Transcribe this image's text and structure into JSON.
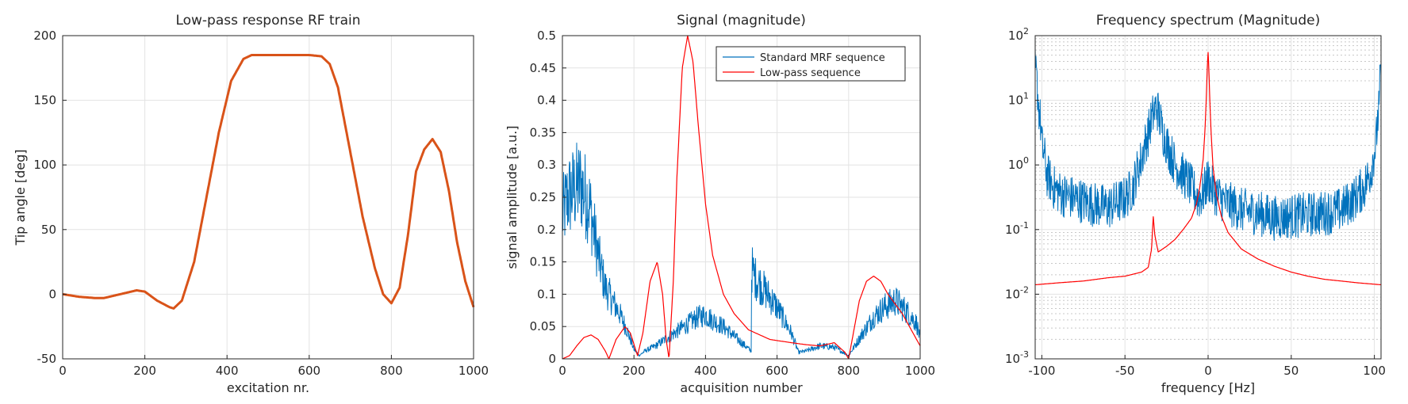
{
  "figure": {
    "background": "#ffffff"
  },
  "chart_data": [
    {
      "type": "line",
      "title": "Low-pass response RF train",
      "xlabel": "excitation nr.",
      "ylabel": "Tip angle [deg]",
      "xlim": [
        0,
        1000
      ],
      "ylim": [
        -50,
        200
      ],
      "xticks": [
        "0",
        "200",
        "400",
        "600",
        "800",
        "1000"
      ],
      "yticks": [
        "-50",
        "0",
        "50",
        "100",
        "150",
        "200"
      ],
      "grid": true,
      "legend": "none",
      "series": [
        {
          "color": "#d95319",
          "x": [
            0,
            40,
            80,
            100,
            140,
            180,
            200,
            230,
            260,
            270,
            290,
            320,
            350,
            380,
            410,
            440,
            460,
            480,
            500,
            600,
            630,
            650,
            670,
            700,
            730,
            760,
            780,
            800,
            820,
            840,
            860,
            880,
            900,
            920,
            940,
            960,
            980,
            1000
          ],
          "y": [
            0,
            -2,
            -3,
            -3,
            0,
            3,
            2,
            -5,
            -10,
            -11,
            -5,
            25,
            75,
            125,
            165,
            182,
            185,
            185,
            185,
            185,
            184,
            178,
            160,
            110,
            60,
            20,
            0,
            -7,
            5,
            45,
            95,
            112,
            120,
            110,
            80,
            40,
            10,
            -10
          ]
        }
      ]
    },
    {
      "type": "line",
      "title": "Signal (magnitude)",
      "xlabel": "acquisition number",
      "ylabel": "signal amplitude [a.u.]",
      "xlim": [
        0,
        1000
      ],
      "ylim": [
        0,
        0.5
      ],
      "xticks": [
        "0",
        "200",
        "400",
        "600",
        "800",
        "1000"
      ],
      "yticks": [
        "0",
        "0.05",
        "0.1",
        "0.15",
        "0.2",
        "0.25",
        "0.3",
        "0.35",
        "0.4",
        "0.45",
        "0.5"
      ],
      "grid": true,
      "legend": "top-right",
      "series": [
        {
          "name": "Standard MRF sequence",
          "color": "#0072bd",
          "noisy": true,
          "x": [
            0,
            15,
            30,
            50,
            75,
            100,
            120,
            140,
            160,
            180,
            200,
            215,
            230,
            260,
            300,
            340,
            380,
            400,
            420,
            450,
            480,
            528,
            529,
            540,
            560,
            600,
            640,
            660,
            680,
            720,
            760,
            800,
            840,
            870,
            900,
            930,
            960,
            990,
            1000
          ],
          "y": [
            0.22,
            0.25,
            0.26,
            0.27,
            0.24,
            0.16,
            0.11,
            0.09,
            0.07,
            0.045,
            0.015,
            0.005,
            0.012,
            0.02,
            0.035,
            0.05,
            0.065,
            0.068,
            0.06,
            0.05,
            0.035,
            0.012,
            0.14,
            0.125,
            0.11,
            0.08,
            0.04,
            0.01,
            0.012,
            0.02,
            0.018,
            0.005,
            0.04,
            0.065,
            0.08,
            0.09,
            0.075,
            0.055,
            0.03
          ]
        },
        {
          "name": "Low-pass sequence",
          "color": "#ff0000",
          "noisy": false,
          "x": [
            0,
            20,
            40,
            60,
            80,
            100,
            120,
            130,
            150,
            175,
            190,
            210,
            225,
            245,
            265,
            280,
            290,
            298,
            310,
            320,
            335,
            350,
            365,
            380,
            400,
            420,
            450,
            480,
            520,
            580,
            640,
            680,
            720,
            760,
            790,
            800,
            810,
            830,
            850,
            870,
            890,
            910,
            930,
            950,
            970,
            1000
          ],
          "y": [
            0,
            0.005,
            0.02,
            0.033,
            0.037,
            0.03,
            0.012,
            0.0,
            0.03,
            0.05,
            0.04,
            0.005,
            0.04,
            0.12,
            0.15,
            0.1,
            0.03,
            0.0,
            0.12,
            0.28,
            0.45,
            0.5,
            0.46,
            0.36,
            0.24,
            0.16,
            0.1,
            0.07,
            0.045,
            0.03,
            0.025,
            0.022,
            0.02,
            0.025,
            0.01,
            0.0,
            0.03,
            0.09,
            0.12,
            0.128,
            0.12,
            0.1,
            0.085,
            0.07,
            0.05,
            0.02
          ]
        }
      ]
    },
    {
      "type": "line",
      "title": "Frequency spectrum (Magnitude)",
      "xlabel": "frequency [Hz]",
      "ylabel": "",
      "xlim": [
        -104,
        104
      ],
      "ylim": [
        0.001,
        100
      ],
      "yscale": "log",
      "xticks": [
        "-100",
        "-50",
        "0",
        "50",
        "100"
      ],
      "yticks": [
        "10^-3",
        "10^-2",
        "10^-1",
        "10^0",
        "10^1",
        "10^2"
      ],
      "grid": true,
      "minor_grid": true,
      "legend": "none",
      "series": [
        {
          "color": "#0072bd",
          "noisy": true,
          "x": [
            -104,
            -102,
            -100,
            -97,
            -93,
            -88,
            -80,
            -70,
            -60,
            -50,
            -45,
            -40,
            -36,
            -33,
            -31,
            -29,
            -27,
            -24,
            -20,
            -15,
            -10,
            -6,
            -3,
            -1,
            0,
            2,
            5,
            8,
            12,
            20,
            30,
            40,
            50,
            60,
            70,
            80,
            88,
            94,
            98,
            101,
            103,
            104
          ],
          "y": [
            30,
            8,
            2,
            0.7,
            0.45,
            0.35,
            0.3,
            0.25,
            0.22,
            0.3,
            0.45,
            1.2,
            3,
            6,
            8,
            5,
            3,
            1.8,
            1.0,
            0.7,
            0.45,
            0.3,
            0.35,
            0.5,
            0.6,
            0.45,
            0.35,
            0.3,
            0.25,
            0.2,
            0.18,
            0.15,
            0.16,
            0.17,
            0.18,
            0.2,
            0.3,
            0.45,
            0.8,
            2,
            8,
            35
          ]
        },
        {
          "color": "#ff0000",
          "noisy": false,
          "x": [
            -104,
            -90,
            -75,
            -60,
            -50,
            -40,
            -36,
            -34,
            -33,
            -32,
            -30,
            -25,
            -20,
            -15,
            -10,
            -7,
            -5,
            -3,
            -2,
            -1,
            -0.5,
            0,
            0.5,
            1,
            2,
            3,
            5,
            8,
            12,
            20,
            30,
            40,
            50,
            60,
            70,
            80,
            90,
            104
          ],
          "y": [
            0.014,
            0.015,
            0.016,
            0.018,
            0.019,
            0.022,
            0.026,
            0.05,
            0.16,
            0.08,
            0.045,
            0.055,
            0.07,
            0.1,
            0.15,
            0.25,
            0.45,
            1.2,
            3,
            12,
            35,
            55,
            30,
            10,
            2.5,
            0.9,
            0.35,
            0.16,
            0.09,
            0.05,
            0.035,
            0.027,
            0.022,
            0.019,
            0.017,
            0.016,
            0.015,
            0.014
          ]
        }
      ]
    }
  ]
}
